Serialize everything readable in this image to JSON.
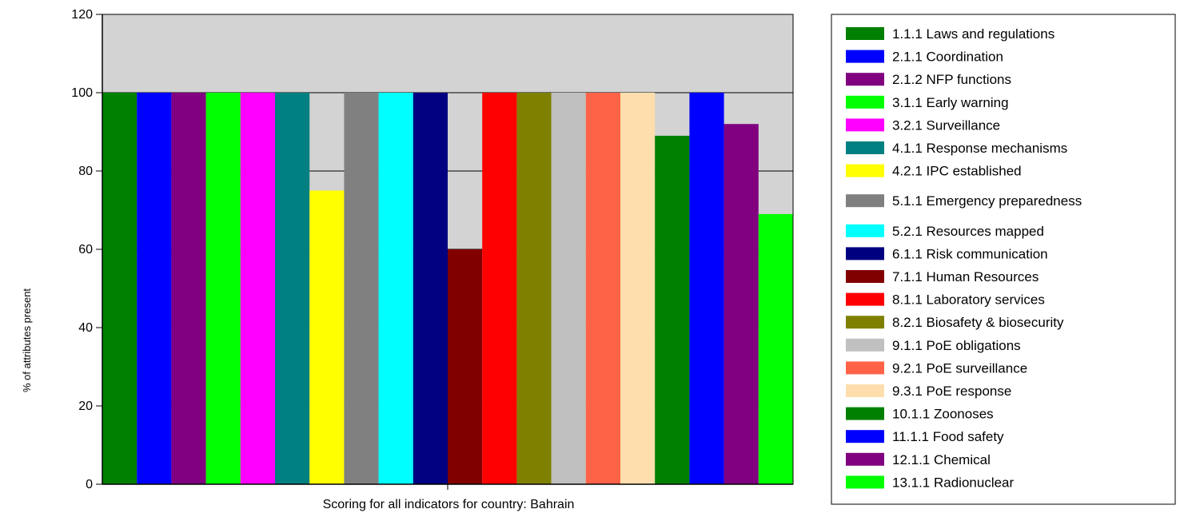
{
  "chart_data": {
    "type": "bar",
    "title": "",
    "xlabel": "Scoring for all indicators for country: Bahrain",
    "ylabel": "% of attributes present",
    "ylim": [
      0,
      120
    ],
    "yticks": [
      0,
      20,
      40,
      60,
      80,
      100,
      120
    ],
    "grid": true,
    "plot_background": "#d3d3d3",
    "legend_position": "right",
    "categories": [
      "1.1.1 Laws and regulations",
      "2.1.1 Coordination",
      "2.1.2 NFP functions",
      "3.1.1 Early warning",
      "3.2.1 Surveillance",
      "4.1.1 Response mechanisms",
      "4.2.1 IPC established",
      "5.1.1 Emergency preparedness",
      "5.2.1 Resources mapped",
      "6.1.1 Risk communication",
      "7.1.1 Human Resources",
      "8.1.1 Laboratory services",
      "8.2.1 Biosafety & biosecurity",
      "9.1.1 PoE obligations",
      "9.2.1 PoE surveillance",
      "9.3.1 PoE response",
      "10.1.1 Zoonoses",
      "11.1.1 Food safety",
      "12.1.1 Chemical",
      "13.1.1 Radionuclear"
    ],
    "values": [
      100,
      100,
      100,
      100,
      100,
      100,
      75,
      100,
      100,
      100,
      60,
      100,
      100,
      100,
      100,
      100,
      89,
      100,
      92,
      69
    ],
    "colors": [
      "#008000",
      "#0000ff",
      "#800080",
      "#00ff00",
      "#ff00ff",
      "#008080",
      "#ffff00",
      "#808080",
      "#00ffff",
      "#000080",
      "#800000",
      "#ff0000",
      "#808000",
      "#c0c0c0",
      "#ff6347",
      "#ffdead",
      "#008000",
      "#0000ff",
      "#800080",
      "#00ff00"
    ]
  }
}
